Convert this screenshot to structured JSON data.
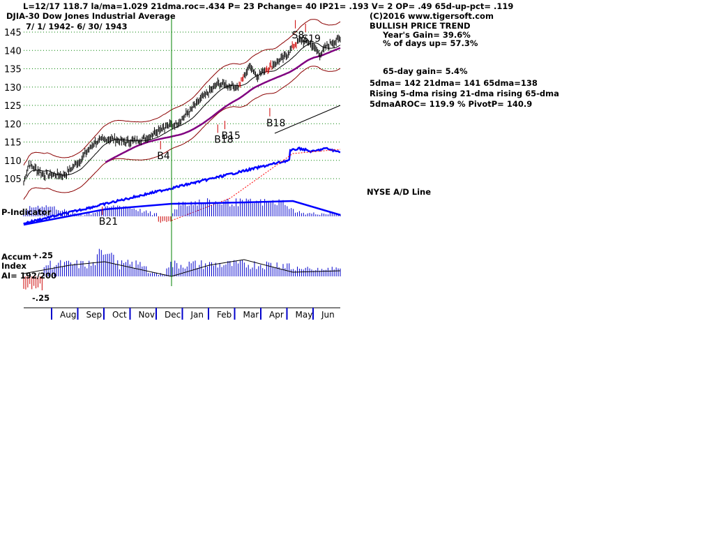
{
  "header": {
    "status_line": "L=12/17  118.7  la/ma=1.029 21dma.roc=.434 P=  23 Pchange=  40 IP21= .193 V= 2 OP= .49 65d-up-pct= .119",
    "index_name": "DJIA-30  Dow Jones Industrial Average",
    "date_range": "7/ 1/ 1942-  6/ 30/ 1943"
  },
  "info_panel": {
    "copyright": "(C)2016 www.tigersoft.com",
    "trend": "BULLISH PRICE TREND",
    "years_gain": "Year's Gain= 39.6%",
    "pct_days_up": "% of days up= 57.3%",
    "gain_65day": "65-day gain= 5.4%",
    "ma_values": "5dma= 142 21dma= 141 65dma=138",
    "ma_direction": "Rising 5-dma  rising 21-dma  rising 65-dma",
    "aroc_pivot": "5dmaAROC= 119.9 %  PivotP= 140.9",
    "ad_line_label": "NYSE A/D Line"
  },
  "panels": {
    "p_indicator_label": "P-Indicator",
    "accum_label": "Accum",
    "accum_label2": "Index",
    "ai_label": "AI= 192/200",
    "accum_top": "+.25",
    "accum_bottom": "-.25"
  },
  "colors": {
    "price_bar": "#000000",
    "band": "#8b0000",
    "ma65": "#800080",
    "ad_line": "#0000ff",
    "ad_ma": "#ff0000",
    "indicator_positive": "#0000cc",
    "indicator_negative": "#cc0000",
    "marker_line": "#008000",
    "grid": "#008000"
  },
  "chart_data": {
    "type": "line",
    "title": "DJIA-30  Dow Jones Industrial Average",
    "y_ticks": [
      105,
      110,
      115,
      120,
      125,
      130,
      135,
      140,
      145
    ],
    "ylim": [
      102,
      148
    ],
    "x_months": [
      "Aug",
      "Sep",
      "Oct",
      "Nov",
      "Dec",
      "Jan",
      "Feb",
      "Mar",
      "Apr",
      "May",
      "Jun"
    ],
    "price_keypoints": [
      {
        "x": 0,
        "y": 104
      },
      {
        "x": 5,
        "y": 109
      },
      {
        "x": 20,
        "y": 106
      },
      {
        "x": 40,
        "y": 106
      },
      {
        "x": 55,
        "y": 110
      },
      {
        "x": 70,
        "y": 115
      },
      {
        "x": 85,
        "y": 116
      },
      {
        "x": 100,
        "y": 115
      },
      {
        "x": 120,
        "y": 116
      },
      {
        "x": 135,
        "y": 119
      },
      {
        "x": 150,
        "y": 120
      },
      {
        "x": 175,
        "y": 127
      },
      {
        "x": 190,
        "y": 131
      },
      {
        "x": 210,
        "y": 130
      },
      {
        "x": 222,
        "y": 136
      },
      {
        "x": 228,
        "y": 133
      },
      {
        "x": 238,
        "y": 135
      },
      {
        "x": 255,
        "y": 138
      },
      {
        "x": 270,
        "y": 143
      },
      {
        "x": 280,
        "y": 142
      },
      {
        "x": 290,
        "y": 139
      },
      {
        "x": 300,
        "y": 142
      },
      {
        "x": 310,
        "y": 143
      }
    ],
    "signals": [
      {
        "label": "B4",
        "x": 134,
        "y": 113
      },
      {
        "label": "B15",
        "x": 197,
        "y": 118.5
      },
      {
        "label": "B18",
        "x": 190,
        "y": 117.5
      },
      {
        "label": "B18",
        "x": 241,
        "y": 122
      },
      {
        "label": "S8",
        "x": 266,
        "y": 146
      },
      {
        "label": "S19",
        "x": 276,
        "y": 145
      },
      {
        "label": "B21",
        "x": 77,
        "y": 0
      }
    ],
    "vertical_marker_x": 134
  }
}
